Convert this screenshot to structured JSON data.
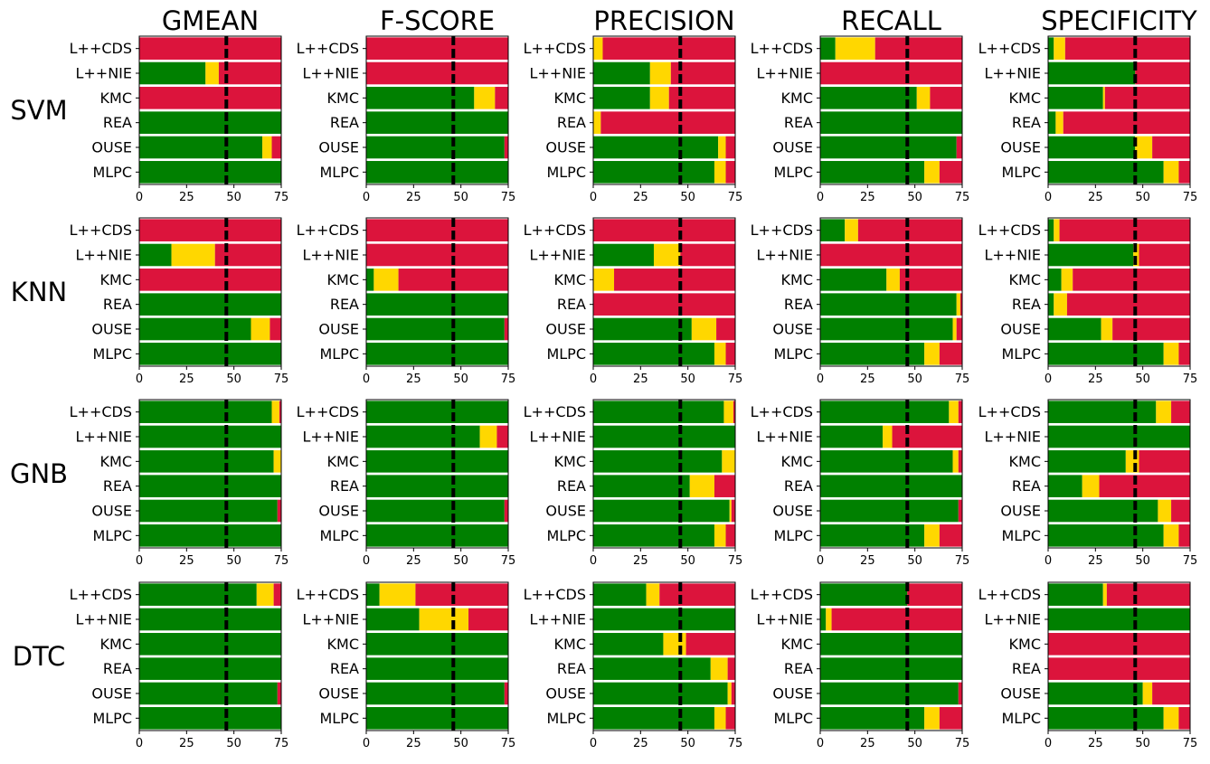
{
  "chart_data": {
    "type": "bar",
    "orientation": "horizontal-stacked",
    "metrics": [
      "GMEAN",
      "F-SCORE",
      "PRECISION",
      "RECALL",
      "SPECIFICITY"
    ],
    "classifiers": [
      "SVM",
      "KNN",
      "GNB",
      "DTC"
    ],
    "categories": [
      "L++CDS",
      "L++NIE",
      "KMC",
      "REA",
      "OUSE",
      "MLPC"
    ],
    "xlim": [
      0,
      75
    ],
    "xticks": [
      0,
      25,
      50,
      75
    ],
    "reference_line": 46,
    "colors": {
      "green": "#008000",
      "yellow": "#FFD700",
      "red": "#DC143C",
      "reference": "#000000"
    },
    "series_order": [
      "green",
      "yellow",
      "red"
    ],
    "grid": false,
    "legend": "none",
    "panels": [
      {
        "classifier": "SVM",
        "metric": "GMEAN",
        "segments": [
          [
            0,
            0,
            75
          ],
          [
            35,
            7,
            33
          ],
          [
            0,
            0,
            75
          ],
          [
            75,
            0,
            0
          ],
          [
            65,
            5,
            5
          ],
          [
            75,
            0,
            0
          ]
        ]
      },
      {
        "classifier": "SVM",
        "metric": "F-SCORE",
        "segments": [
          [
            0,
            0,
            75
          ],
          [
            0,
            0,
            75
          ],
          [
            57,
            11,
            7
          ],
          [
            75,
            0,
            0
          ],
          [
            73,
            0,
            2
          ],
          [
            75,
            0,
            0
          ]
        ]
      },
      {
        "classifier": "SVM",
        "metric": "PRECISION",
        "segments": [
          [
            0,
            5,
            70
          ],
          [
            30,
            11,
            34
          ],
          [
            30,
            10,
            35
          ],
          [
            0,
            4,
            71
          ],
          [
            66,
            4,
            5
          ],
          [
            64,
            6,
            5
          ]
        ]
      },
      {
        "classifier": "SVM",
        "metric": "RECALL",
        "segments": [
          [
            8,
            21,
            46
          ],
          [
            0,
            0,
            75
          ],
          [
            51,
            7,
            17
          ],
          [
            75,
            0,
            0
          ],
          [
            72,
            0,
            3
          ],
          [
            55,
            8,
            12
          ]
        ]
      },
      {
        "classifier": "SVM",
        "metric": "SPECIFICITY",
        "segments": [
          [
            3,
            6,
            66
          ],
          [
            46,
            0,
            29
          ],
          [
            29,
            1,
            45
          ],
          [
            4,
            4,
            67
          ],
          [
            46,
            9,
            20
          ],
          [
            61,
            8,
            6
          ]
        ]
      },
      {
        "classifier": "KNN",
        "metric": "GMEAN",
        "segments": [
          [
            0,
            0,
            75
          ],
          [
            17,
            23,
            35
          ],
          [
            0,
            0,
            75
          ],
          [
            75,
            0,
            0
          ],
          [
            59,
            10,
            6
          ],
          [
            75,
            0,
            0
          ]
        ]
      },
      {
        "classifier": "KNN",
        "metric": "F-SCORE",
        "segments": [
          [
            0,
            0,
            75
          ],
          [
            0,
            0,
            75
          ],
          [
            4,
            13,
            58
          ],
          [
            75,
            0,
            0
          ],
          [
            73,
            0,
            2
          ],
          [
            75,
            0,
            0
          ]
        ]
      },
      {
        "classifier": "KNN",
        "metric": "PRECISION",
        "segments": [
          [
            0,
            0,
            75
          ],
          [
            32,
            14,
            29
          ],
          [
            0,
            11,
            64
          ],
          [
            0,
            0,
            75
          ],
          [
            52,
            13,
            10
          ],
          [
            64,
            6,
            5
          ]
        ]
      },
      {
        "classifier": "KNN",
        "metric": "RECALL",
        "segments": [
          [
            13,
            7,
            55
          ],
          [
            0,
            0,
            75
          ],
          [
            35,
            7,
            33
          ],
          [
            72,
            2,
            1
          ],
          [
            70,
            2,
            3
          ],
          [
            55,
            8,
            12
          ]
        ]
      },
      {
        "classifier": "KNN",
        "metric": "SPECIFICITY",
        "segments": [
          [
            3,
            3,
            69
          ],
          [
            45,
            3,
            27
          ],
          [
            7,
            6,
            62
          ],
          [
            3,
            7,
            65
          ],
          [
            28,
            6,
            41
          ],
          [
            61,
            8,
            6
          ]
        ]
      },
      {
        "classifier": "GNB",
        "metric": "GMEAN",
        "segments": [
          [
            70,
            4,
            1
          ],
          [
            75,
            0,
            0
          ],
          [
            71,
            4,
            0
          ],
          [
            75,
            0,
            0
          ],
          [
            73,
            0,
            2
          ],
          [
            75,
            0,
            0
          ]
        ]
      },
      {
        "classifier": "GNB",
        "metric": "F-SCORE",
        "segments": [
          [
            75,
            0,
            0
          ],
          [
            60,
            9,
            6
          ],
          [
            75,
            0,
            0
          ],
          [
            75,
            0,
            0
          ],
          [
            73,
            0,
            2
          ],
          [
            75,
            0,
            0
          ]
        ]
      },
      {
        "classifier": "GNB",
        "metric": "PRECISION",
        "segments": [
          [
            69,
            5,
            1
          ],
          [
            75,
            0,
            0
          ],
          [
            68,
            7,
            0
          ],
          [
            51,
            13,
            11
          ],
          [
            72,
            1,
            2
          ],
          [
            64,
            6,
            5
          ]
        ]
      },
      {
        "classifier": "GNB",
        "metric": "RECALL",
        "segments": [
          [
            68,
            5,
            2
          ],
          [
            33,
            5,
            37
          ],
          [
            70,
            3,
            2
          ],
          [
            75,
            0,
            0
          ],
          [
            73,
            0,
            2
          ],
          [
            55,
            8,
            12
          ]
        ]
      },
      {
        "classifier": "GNB",
        "metric": "SPECIFICITY",
        "segments": [
          [
            57,
            8,
            10
          ],
          [
            75,
            0,
            0
          ],
          [
            41,
            7,
            27
          ],
          [
            18,
            9,
            48
          ],
          [
            58,
            7,
            10
          ],
          [
            61,
            8,
            6
          ]
        ]
      },
      {
        "classifier": "DTC",
        "metric": "GMEAN",
        "segments": [
          [
            62,
            9,
            4
          ],
          [
            75,
            0,
            0
          ],
          [
            75,
            0,
            0
          ],
          [
            75,
            0,
            0
          ],
          [
            73,
            0,
            2
          ],
          [
            75,
            0,
            0
          ]
        ]
      },
      {
        "classifier": "DTC",
        "metric": "F-SCORE",
        "segments": [
          [
            7,
            19,
            49
          ],
          [
            28,
            26,
            21
          ],
          [
            75,
            0,
            0
          ],
          [
            75,
            0,
            0
          ],
          [
            73,
            0,
            2
          ],
          [
            75,
            0,
            0
          ]
        ]
      },
      {
        "classifier": "DTC",
        "metric": "PRECISION",
        "segments": [
          [
            28,
            7,
            40
          ],
          [
            75,
            0,
            0
          ],
          [
            37,
            12,
            26
          ],
          [
            62,
            9,
            4
          ],
          [
            71,
            2,
            2
          ],
          [
            64,
            6,
            5
          ]
        ]
      },
      {
        "classifier": "DTC",
        "metric": "RECALL",
        "segments": [
          [
            46,
            0,
            29
          ],
          [
            3,
            3,
            69
          ],
          [
            75,
            0,
            0
          ],
          [
            75,
            0,
            0
          ],
          [
            73,
            0,
            2
          ],
          [
            55,
            8,
            12
          ]
        ]
      },
      {
        "classifier": "DTC",
        "metric": "SPECIFICITY",
        "segments": [
          [
            29,
            2,
            44
          ],
          [
            75,
            0,
            0
          ],
          [
            0,
            0,
            75
          ],
          [
            0,
            0,
            75
          ],
          [
            50,
            5,
            20
          ],
          [
            61,
            8,
            6
          ]
        ]
      }
    ]
  }
}
